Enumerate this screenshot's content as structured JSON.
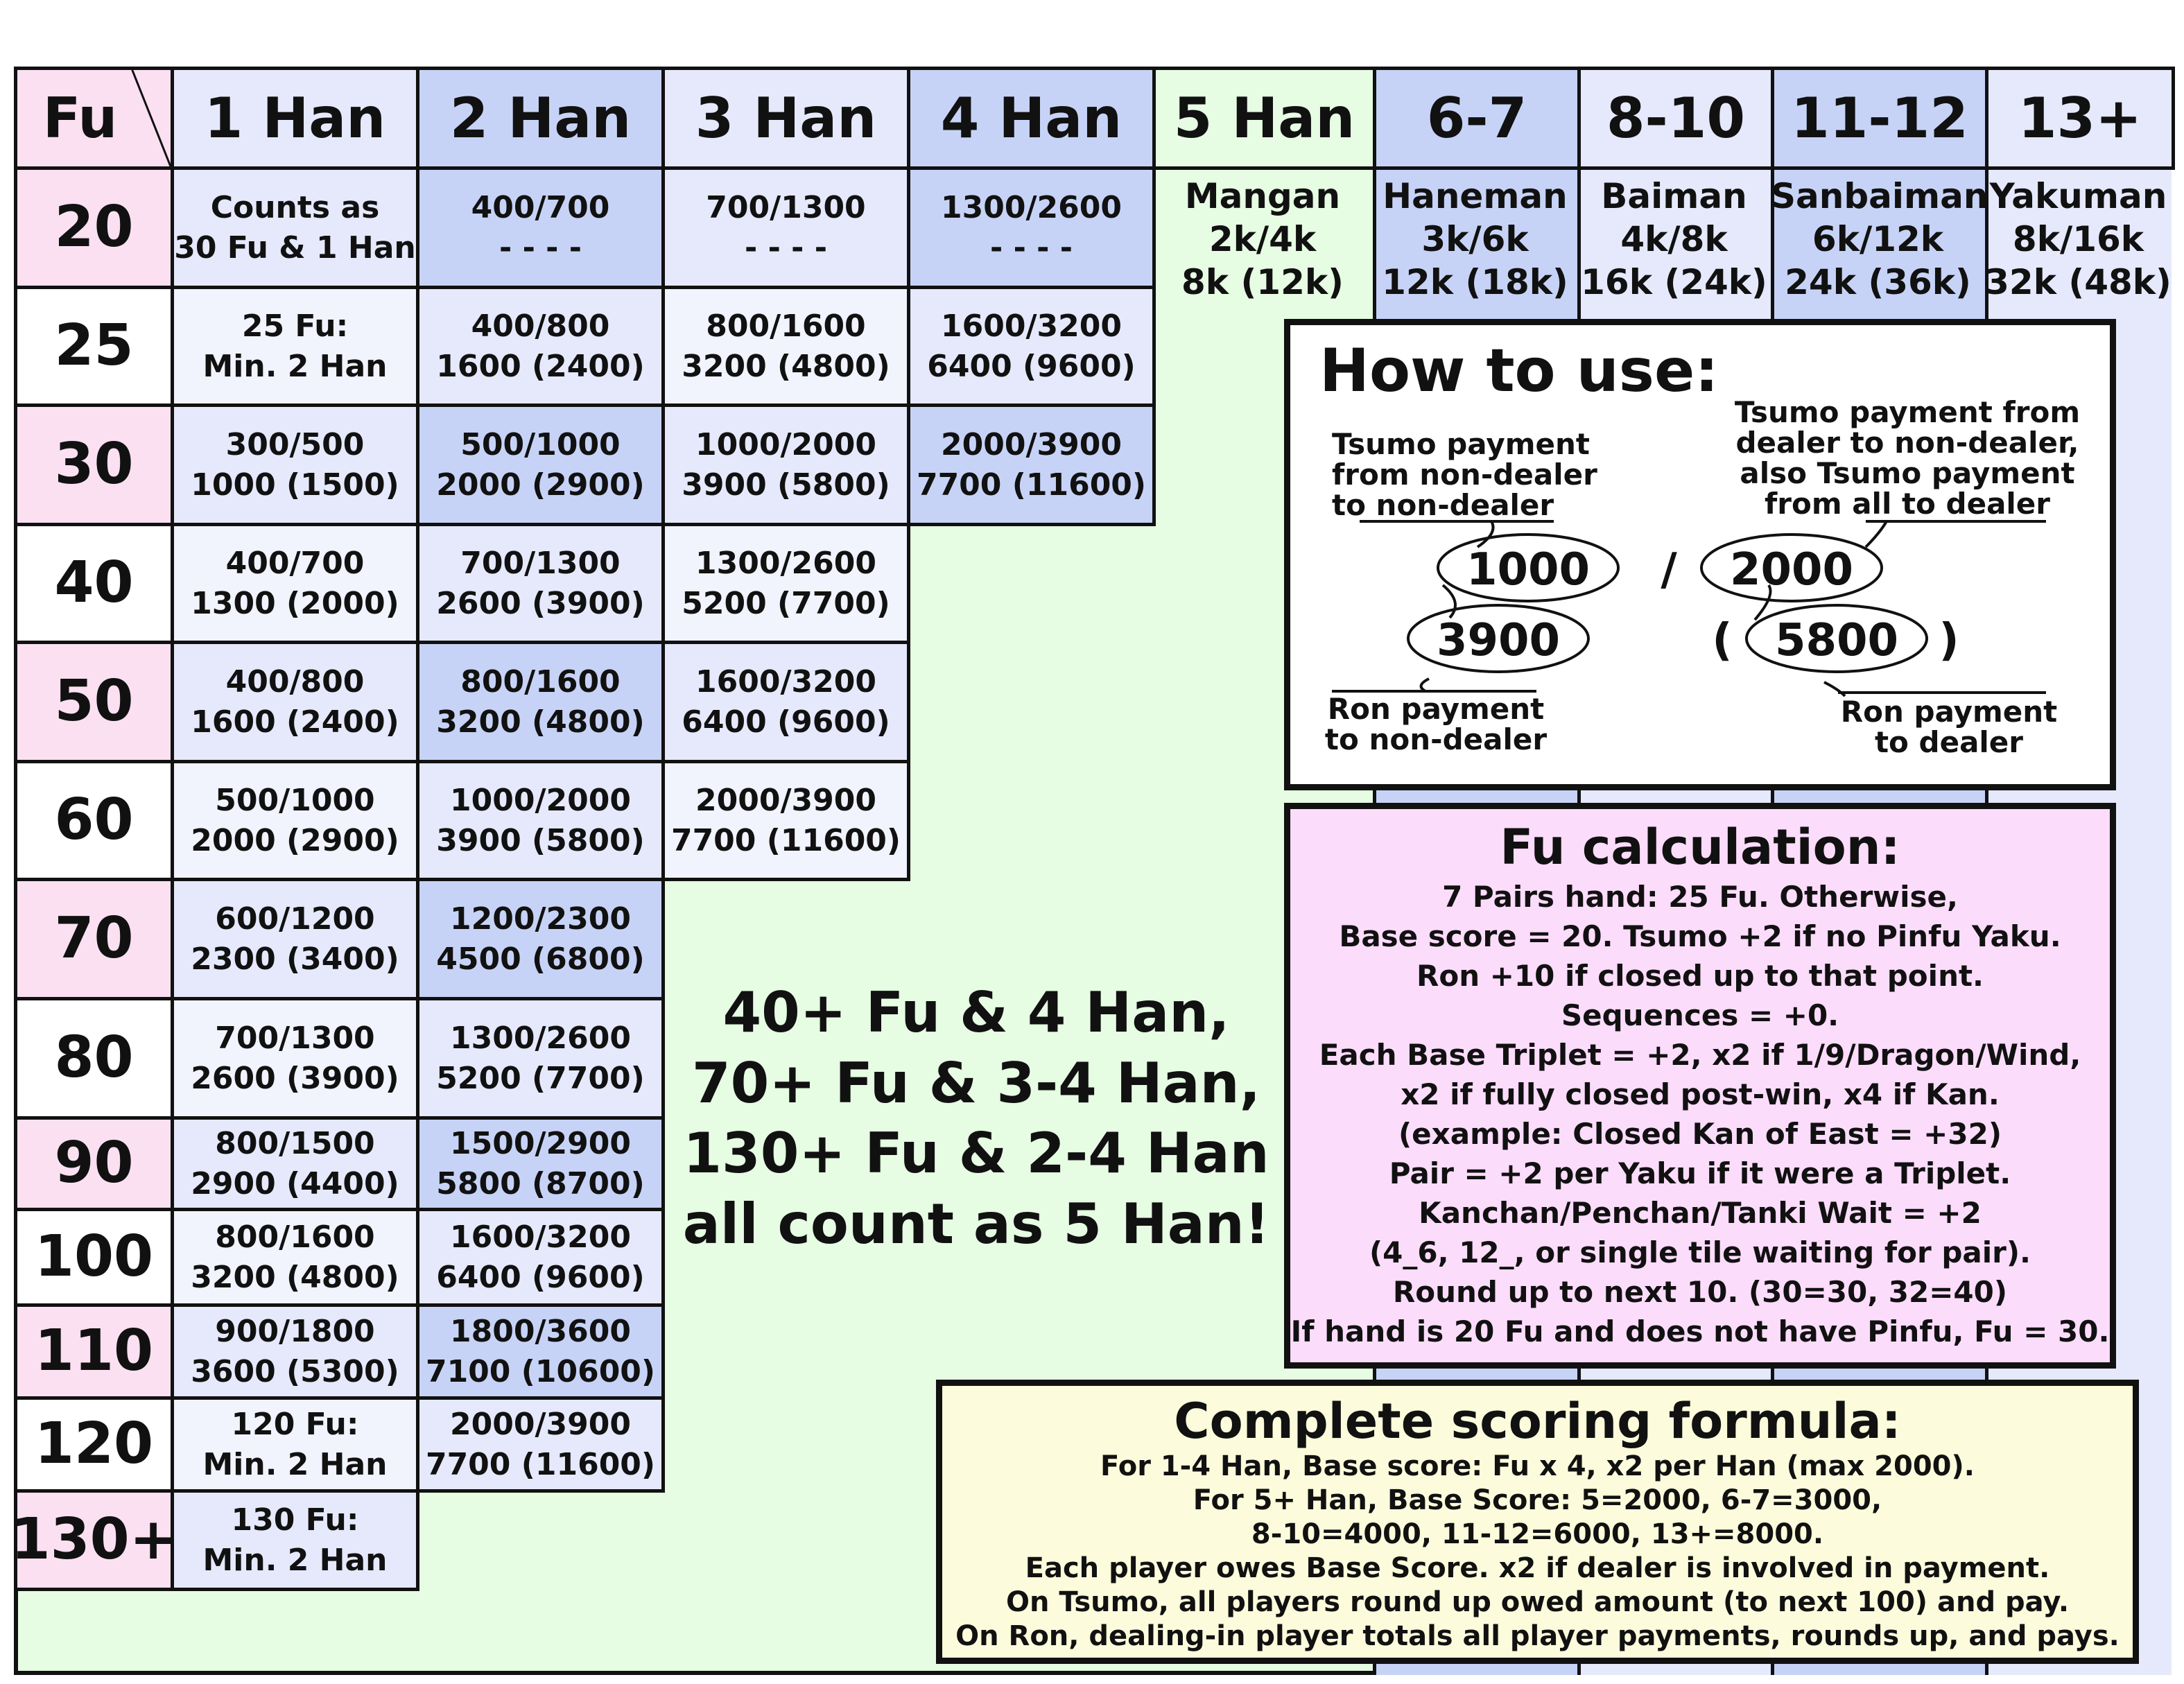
{
  "header": {
    "fu_label": "Fu",
    "han_labels": [
      "1 Han",
      "2 Han",
      "3 Han",
      "4 Han",
      "5 Han",
      "6-7",
      "8-10",
      "11-12",
      "13+"
    ]
  },
  "rows": [
    {
      "fu": "20",
      "cells": [
        [
          "Counts as",
          "30 Fu & 1 Han"
        ],
        [
          "400/700",
          "- - - -"
        ],
        [
          "700/1300",
          "- - - -"
        ],
        [
          "1300/2600",
          "- - - -"
        ]
      ]
    },
    {
      "fu": "25",
      "cells": [
        [
          "25 Fu:",
          "Min. 2 Han"
        ],
        [
          "400/800",
          "1600 (2400)"
        ],
        [
          "800/1600",
          "3200 (4800)"
        ],
        [
          "1600/3200",
          "6400 (9600)"
        ]
      ]
    },
    {
      "fu": "30",
      "cells": [
        [
          "300/500",
          "1000 (1500)"
        ],
        [
          "500/1000",
          "2000 (2900)"
        ],
        [
          "1000/2000",
          "3900 (5800)"
        ],
        [
          "2000/3900",
          "7700 (11600)"
        ]
      ]
    },
    {
      "fu": "40",
      "cells": [
        [
          "400/700",
          "1300 (2000)"
        ],
        [
          "700/1300",
          "2600 (3900)"
        ],
        [
          "1300/2600",
          "5200 (7700)"
        ]
      ]
    },
    {
      "fu": "50",
      "cells": [
        [
          "400/800",
          "1600 (2400)"
        ],
        [
          "800/1600",
          "3200 (4800)"
        ],
        [
          "1600/3200",
          "6400 (9600)"
        ]
      ]
    },
    {
      "fu": "60",
      "cells": [
        [
          "500/1000",
          "2000 (2900)"
        ],
        [
          "1000/2000",
          "3900 (5800)"
        ],
        [
          "2000/3900",
          "7700 (11600)"
        ]
      ]
    },
    {
      "fu": "70",
      "cells": [
        [
          "600/1200",
          "2300 (3400)"
        ],
        [
          "1200/2300",
          "4500 (6800)"
        ]
      ]
    },
    {
      "fu": "80",
      "cells": [
        [
          "700/1300",
          "2600 (3900)"
        ],
        [
          "1300/2600",
          "5200 (7700)"
        ]
      ]
    },
    {
      "fu": "90",
      "cells": [
        [
          "800/1500",
          "2900 (4400)"
        ],
        [
          "1500/2900",
          "5800 (8700)"
        ]
      ]
    },
    {
      "fu": "100",
      "cells": [
        [
          "800/1600",
          "3200 (4800)"
        ],
        [
          "1600/3200",
          "6400 (9600)"
        ]
      ]
    },
    {
      "fu": "110",
      "cells": [
        [
          "900/1800",
          "3600 (5300)"
        ],
        [
          "1800/3600",
          "7100 (10600)"
        ]
      ]
    },
    {
      "fu": "120",
      "cells": [
        [
          "120 Fu:",
          "Min. 2 Han"
        ],
        [
          "2000/3900",
          "7700 (11600)"
        ]
      ]
    },
    {
      "fu": "130+",
      "cells": [
        [
          "130 Fu:",
          "Min. 2 Han"
        ]
      ]
    }
  ],
  "limit_tiers": [
    {
      "name": "Mangan",
      "payment": "2k/4k",
      "ron": "8k (12k)"
    },
    {
      "name": "Haneman",
      "payment": "3k/6k",
      "ron": "12k (18k)"
    },
    {
      "name": "Baiman",
      "payment": "4k/8k",
      "ron": "16k (24k)"
    },
    {
      "name": "Sanbaiman",
      "payment": "6k/12k",
      "ron": "24k (36k)"
    },
    {
      "name": "Yakuman",
      "payment": "8k/16k",
      "ron": "32k (48k)"
    }
  ],
  "callout": [
    "40+ Fu & 4 Han,",
    "70+ Fu & 3-4 Han,",
    "130+ Fu & 2-4 Han",
    "all count as 5 Han!"
  ],
  "how_to_use": {
    "title": "How to use:",
    "left_top": [
      "Tsumo payment",
      "from non-dealer",
      "to non-dealer"
    ],
    "right_top": [
      "Tsumo payment from",
      "dealer to non-dealer,",
      "also Tsumo payment",
      "from all to dealer"
    ],
    "v1": "1000",
    "slash": "/",
    "v2": "2000",
    "v3": "3900",
    "open_paren": "(",
    "v4": "5800",
    "close_paren": ")",
    "left_bottom": [
      "Ron payment",
      "to non-dealer"
    ],
    "right_bottom": [
      "Ron payment",
      "to dealer"
    ]
  },
  "fu_calc": {
    "title": "Fu calculation:",
    "lines": [
      "7 Pairs hand: 25 Fu. Otherwise,",
      "Base score = 20. Tsumo +2 if no Pinfu Yaku.",
      "Ron +10 if closed up to that point.",
      "Sequences = +0.",
      "Each Base Triplet = +2, x2 if 1/9/Dragon/Wind,",
      "x2 if fully closed post-win, x4 if Kan.",
      "(example: Closed Kan of East = +32)",
      "Pair = +2 per Yaku if it were a Triplet.",
      "Kanchan/Penchan/Tanki Wait = +2",
      "(4_6, 12_, or single tile waiting for pair).",
      "Round up to next 10. (30=30, 32=40)",
      "If hand is 20 Fu and does not have Pinfu, Fu = 30."
    ]
  },
  "formula": {
    "title": "Complete scoring formula:",
    "lines": [
      "For 1-4 Han, Base score: Fu x 4, x2 per Han (max 2000).",
      "For 5+ Han, Base Score: 5=2000, 6-7=3000,",
      "8-10=4000, 11-12=6000, 13+=8000.",
      "Each player owes Base Score. x2 if dealer is involved in payment.",
      "On Tsumo, all players round up owed amount (to next 100) and pay.",
      "On Ron, dealing-in player totals all player payments, rounds up, and pays."
    ]
  },
  "colors": {
    "pink": "#fbe0f2",
    "light_blue": "#e5e9fb",
    "mid_blue": "#c7d3f6",
    "header_green": "#e6fce3",
    "page_green": "#e6fce3",
    "fu_box": "#fcdcfb",
    "formula_box": "#fcfcdc"
  }
}
